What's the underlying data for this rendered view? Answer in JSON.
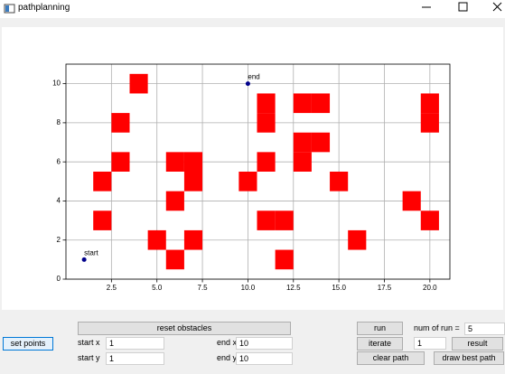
{
  "window": {
    "title": "pathplanning"
  },
  "chart_data": {
    "type": "scatter",
    "xlim": [
      0,
      21.1
    ],
    "ylim": [
      0,
      11
    ],
    "xticks": [
      {
        "value": 2.5,
        "label": "2.5"
      },
      {
        "value": 5,
        "label": "5.0"
      },
      {
        "value": 7.5,
        "label": "7.5"
      },
      {
        "value": 10,
        "label": "10.0"
      },
      {
        "value": 12.5,
        "label": "12.5"
      },
      {
        "value": 15,
        "label": "15.0"
      },
      {
        "value": 17.5,
        "label": "17.5"
      },
      {
        "value": 20,
        "label": "20.0"
      }
    ],
    "yticks": [
      0,
      2,
      4,
      6,
      8,
      10
    ],
    "grid": true,
    "obstacles": {
      "color": "#ff0000",
      "x": [
        4,
        3,
        3,
        2,
        2,
        6,
        7,
        7,
        6,
        5,
        6,
        7,
        10,
        11,
        11,
        11,
        11,
        12,
        13,
        14,
        13,
        14,
        13,
        12,
        15,
        16,
        19,
        20,
        20,
        20
      ],
      "y": [
        10,
        8,
        6,
        5,
        3,
        6,
        6,
        5,
        4,
        2,
        1,
        2,
        5,
        6,
        9,
        8,
        3,
        3,
        9,
        9,
        7,
        7,
        6,
        1,
        5,
        2,
        4,
        3,
        9,
        8
      ]
    },
    "points": [
      {
        "label": "start",
        "x": 1,
        "y": 1
      },
      {
        "label": "end",
        "x": 10,
        "y": 10
      }
    ],
    "point_color": "#00008b"
  },
  "controls": {
    "set_points": "set points",
    "reset_obstacles": "reset obstacles",
    "start_x_label": "start x",
    "start_x": "1",
    "start_y_label": "start y",
    "start_y": "1",
    "end_x_label": "end x",
    "end_x": "10",
    "end_y_label": "end y",
    "end_y": "10",
    "run": "run",
    "num_of_run_label": "num of run =",
    "num_of_run": "5",
    "iterate": "iterate",
    "iterate_value": "1",
    "result": "result",
    "clear_path": "clear path",
    "draw_best_path": "draw best path"
  }
}
